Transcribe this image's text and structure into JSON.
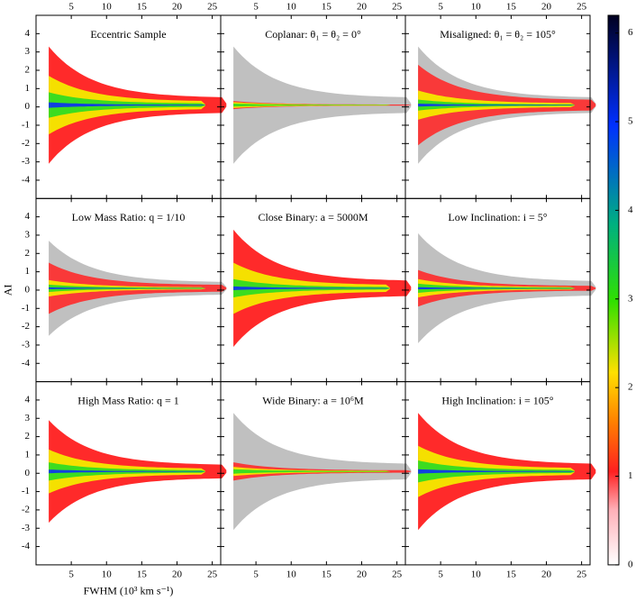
{
  "chart_data": [
    {
      "type": "heatmap",
      "title": "Eccentric Sample",
      "xlim": [
        0,
        26.2
      ],
      "xticks": [
        5,
        10,
        15,
        20,
        25
      ],
      "ylim": [
        -5,
        5
      ],
      "yticks": [
        -4,
        -3,
        -2,
        -1,
        0,
        1,
        2,
        3,
        4
      ]
    },
    {
      "type": "heatmap",
      "title": "Coplanar: θ₁ = θ₂ = 0°",
      "xlim": [
        0,
        26.2
      ],
      "xticks": [
        5,
        10,
        15,
        20,
        25
      ],
      "ylim": [
        -5,
        5
      ],
      "yticks": [
        -4,
        -3,
        -2,
        -1,
        0,
        1,
        2,
        3,
        4
      ]
    },
    {
      "type": "heatmap",
      "title": "Misaligned: θ₁ = θ₂ = 105°",
      "xlim": [
        0,
        26.2
      ],
      "xticks": [
        5,
        10,
        15,
        20,
        25
      ],
      "ylim": [
        -5,
        5
      ],
      "yticks": [
        -4,
        -3,
        -2,
        -1,
        0,
        1,
        2,
        3,
        4
      ]
    },
    {
      "type": "heatmap",
      "title": "Low Mass Ratio: q = 1/10",
      "ylabel": "AI",
      "xlim": [
        0,
        26.2
      ],
      "xticks": [
        5,
        10,
        15,
        20,
        25
      ],
      "ylim": [
        -5,
        5
      ],
      "yticks": [
        -4,
        -3,
        -2,
        -1,
        0,
        1,
        2,
        3,
        4
      ]
    },
    {
      "type": "heatmap",
      "title": "Close Binary: a = 5000M",
      "xlim": [
        0,
        26.2
      ],
      "xticks": [
        5,
        10,
        15,
        20,
        25
      ],
      "ylim": [
        -5,
        5
      ],
      "yticks": [
        -4,
        -3,
        -2,
        -1,
        0,
        1,
        2,
        3,
        4
      ]
    },
    {
      "type": "heatmap",
      "title": "Low Inclination: i = 5°",
      "xlim": [
        0,
        26.2
      ],
      "xticks": [
        5,
        10,
        15,
        20,
        25
      ],
      "ylim": [
        -5,
        5
      ],
      "yticks": [
        -4,
        -3,
        -2,
        -1,
        0,
        1,
        2,
        3,
        4
      ]
    },
    {
      "type": "heatmap",
      "title": "High Mass Ratio: q = 1",
      "xlabel": "FWHM (10³ km s⁻¹)",
      "xlim": [
        0,
        26.2
      ],
      "xticks": [
        5,
        10,
        15,
        20,
        25
      ],
      "ylim": [
        -5,
        5
      ],
      "yticks": [
        -4,
        -3,
        -2,
        -1,
        0,
        1,
        2,
        3,
        4
      ]
    },
    {
      "type": "heatmap",
      "title": "Wide Binary: a = 10⁶M",
      "xlim": [
        0,
        26.2
      ],
      "xticks": [
        5,
        10,
        15,
        20,
        25
      ],
      "ylim": [
        -5,
        5
      ],
      "yticks": [
        -4,
        -3,
        -2,
        -1,
        0,
        1,
        2,
        3,
        4
      ]
    },
    {
      "type": "heatmap",
      "title": "High Inclination: i = 105°",
      "xlim": [
        0,
        26.2
      ],
      "xticks": [
        5,
        10,
        15,
        20,
        25
      ],
      "ylim": [
        -5,
        5
      ],
      "yticks": [
        -4,
        -3,
        -2,
        -1,
        0,
        1,
        2,
        3,
        4
      ]
    },
    {
      "type": "colorbar",
      "ylim": [
        0,
        6.2
      ],
      "yticks": [
        0,
        1,
        2,
        3,
        4,
        5,
        6
      ]
    }
  ]
}
